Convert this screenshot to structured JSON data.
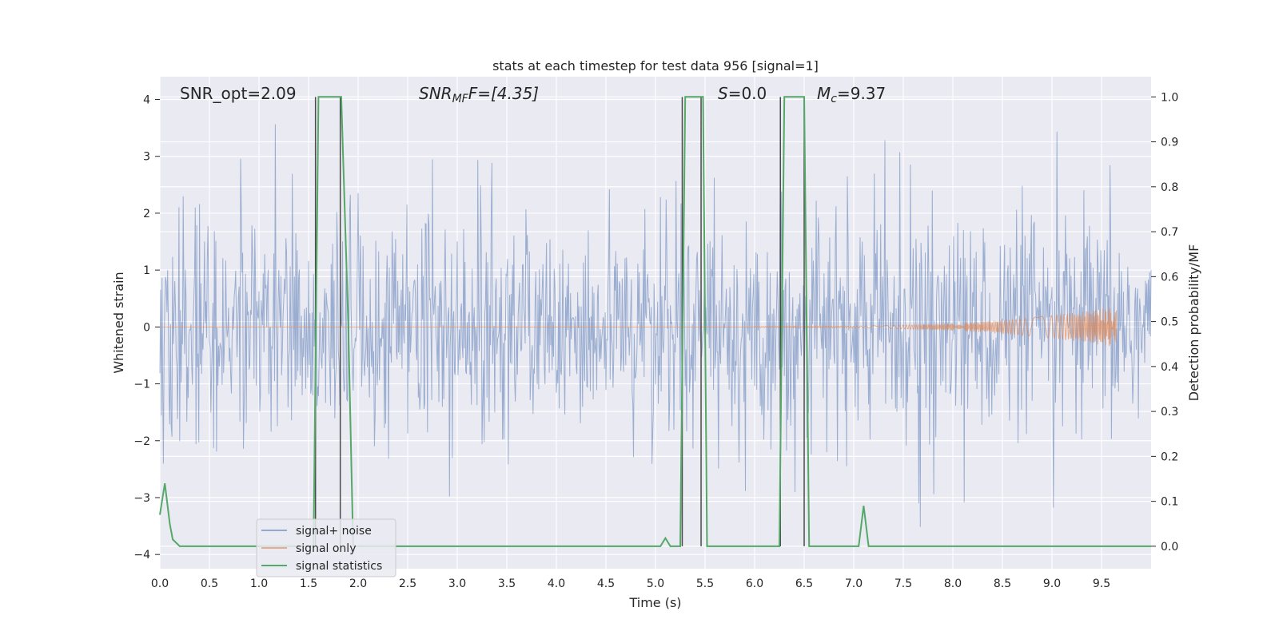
{
  "chart_data": {
    "type": "line",
    "title": "stats at each timestep for test data 956 [signal=1]",
    "xlabel": "Time (s)",
    "ylabel_left": "Whitened strain",
    "ylabel_right": "Detection probability/MF",
    "xlim": [
      0.0,
      10.0
    ],
    "ylim_left": [
      -4.25,
      4.4
    ],
    "ylim_right": [
      -0.05,
      1.045
    ],
    "x_ticks": [
      0.0,
      0.5,
      1.0,
      1.5,
      2.0,
      2.5,
      3.0,
      3.5,
      4.0,
      4.5,
      5.0,
      5.5,
      6.0,
      6.5,
      7.0,
      7.5,
      8.0,
      8.5,
      9.0,
      9.5
    ],
    "x_tick_labels": [
      "0.0",
      "0.5",
      "1.0",
      "1.5",
      "2.0",
      "2.5",
      "3.0",
      "3.5",
      "4.0",
      "4.5",
      "5.0",
      "5.5",
      "6.0",
      "6.5",
      "7.0",
      "7.5",
      "8.0",
      "8.5",
      "9.0",
      "9.5"
    ],
    "y_left_ticks": [
      4,
      3,
      2,
      1,
      0,
      -1,
      -2,
      -3,
      -4
    ],
    "y_left_tick_labels": [
      "4",
      "3",
      "2",
      "1",
      "0",
      "−1",
      "−2",
      "−3",
      "−4"
    ],
    "y_right_ticks": [
      1.0,
      0.9,
      0.8,
      0.7,
      0.6,
      0.5,
      0.4,
      0.3,
      0.2,
      0.1,
      0.0
    ],
    "y_right_tick_labels": [
      "1.0",
      "0.9",
      "0.8",
      "0.7",
      "0.6",
      "0.5",
      "0.4",
      "0.3",
      "0.2",
      "0.1",
      "0.0"
    ],
    "grid": true,
    "legend_position": "lower-left",
    "annotations": {
      "snr_opt": "SNR_opt=2.09",
      "snr_mf_main": "SNR",
      "snr_mf_sub": "MF",
      "snr_mf_value": "F=[4.35]",
      "s_main": "S",
      "s_value": "=0.0",
      "mc_main": "M",
      "mc_sub": "c",
      "mc_value": "=9.37"
    },
    "series": [
      {
        "name": "signal+ noise",
        "axis": "left",
        "color": "#4c72b0",
        "envelope": {
          "abs_typical": 1.6,
          "abs_max": 3.7,
          "fraction_low": 0.0,
          "fraction_high": 1.0
        }
      },
      {
        "name": "signal only",
        "axis": "left",
        "color": "#dd8452",
        "chirp": {
          "start": 6.0,
          "end": 9.65,
          "amp_end": 0.35
        }
      },
      {
        "name": "signal statistics",
        "axis": "right",
        "color": "#55a868",
        "x": [
          0.0,
          0.05,
          0.1,
          0.13,
          0.2,
          1.55,
          1.6,
          1.65,
          1.83,
          1.9,
          1.95,
          5.05,
          5.1,
          5.15,
          5.25,
          5.3,
          5.35,
          5.48,
          5.52,
          5.58,
          6.25,
          6.3,
          6.35,
          6.5,
          6.55,
          6.6,
          7.05,
          7.1,
          7.15,
          10.0
        ],
        "y": [
          0.07,
          0.14,
          0.05,
          0.015,
          0.0,
          0.0,
          1.0,
          1.0,
          1.0,
          0.5,
          0.0,
          0.0,
          0.018,
          0.0,
          0.0,
          1.0,
          1.0,
          1.0,
          0.0,
          0.0,
          0.0,
          1.0,
          1.0,
          1.0,
          0.0,
          0.0,
          0.0,
          0.09,
          0.0,
          0.0
        ]
      }
    ],
    "vertical_lines": [
      1.57,
      1.82,
      5.27,
      5.46,
      6.26,
      6.5
    ],
    "vertical_line_color": "#4a4a4a"
  },
  "legend": {
    "noise_label": "signal+ noise",
    "signal_label": "signal only",
    "stats_label": "signal statistics"
  }
}
